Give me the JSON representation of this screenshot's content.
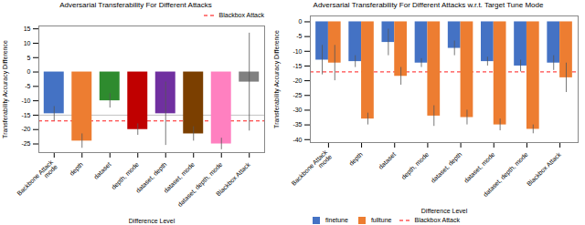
{
  "chart_data": [
    {
      "type": "bar",
      "title": "Adversarial Transferability For Different Attacks",
      "xlabel": "Difference Level",
      "ylabel": "Transferability Accuracy Difference",
      "categories": [
        "Backbone Attack\nmode",
        "depth",
        "dataset",
        "depth, mode",
        "dataset, depth",
        "dataset, mode",
        "dataset, depth, mode",
        "Blackbox Attack"
      ],
      "values": [
        -14.5,
        -24.0,
        -10.0,
        -20.0,
        -14.5,
        -21.5,
        -25.0,
        -3.5
      ],
      "errors_neg": [
        2.5,
        2.5,
        2.5,
        2.0,
        11.0,
        2.5,
        2.0,
        17.0
      ],
      "errors_pos": [
        2.5,
        2.5,
        2.5,
        2.0,
        11.0,
        2.5,
        2.0,
        17.0
      ],
      "colors": [
        "#4472C4",
        "#ED7D31",
        "#2E8B2E",
        "#C00000",
        "#7030A0",
        "#7B3F00",
        "#FF80C0",
        "#808080"
      ],
      "lines": [
        {
          "y": -15.0,
          "color": "gray"
        },
        {
          "y": -17.0,
          "name": "Blackbox Attack",
          "color": "red",
          "line_style": "dashed"
        }
      ],
      "ylim": [
        -28,
        16
      ],
      "yticks": [
        15,
        10,
        5,
        0,
        -5,
        -10,
        -15,
        -20,
        -25
      ],
      "legend": "upper right",
      "grid": false
    },
    {
      "type": "bar",
      "title": "Adversarial Transferability For Different Attacks w.r.t. Target Tune Mode",
      "xlabel": "Difference Level",
      "ylabel": "Transferability Accuracy Difference",
      "categories": [
        "Backbone Attack\nmode",
        "depth",
        "dataset",
        "depth, mode",
        "dataset, depth",
        "dataset, mode",
        "dataset, depth, mode",
        "Blackbox Attack"
      ],
      "series": [
        {
          "name": "finetune",
          "color": "#4472C4",
          "values": [
            -13.0,
            -13.5,
            -7.0,
            -14.0,
            -9.0,
            -13.5,
            -15.0,
            -14.0
          ],
          "errors": [
            5.0,
            2.0,
            4.5,
            1.5,
            2.5,
            1.5,
            2.0,
            2.5
          ]
        },
        {
          "name": "fulltune",
          "color": "#ED7D31",
          "values": [
            -14.0,
            -33.0,
            -18.5,
            -32.0,
            -32.5,
            -35.0,
            -36.5,
            -19.0
          ],
          "errors": [
            6.0,
            2.0,
            3.0,
            3.5,
            2.5,
            2.0,
            1.5,
            5.0
          ]
        }
      ],
      "lines": [
        {
          "y": -17.0,
          "name": "Blackbox Attack",
          "color": "red",
          "line_style": "dashed"
        }
      ],
      "ylim": [
        -41,
        2
      ],
      "yticks": [
        0,
        -5,
        -10,
        -15,
        -20,
        -25,
        -30,
        -35,
        -40
      ],
      "legend": "lower left",
      "grid": false
    }
  ]
}
